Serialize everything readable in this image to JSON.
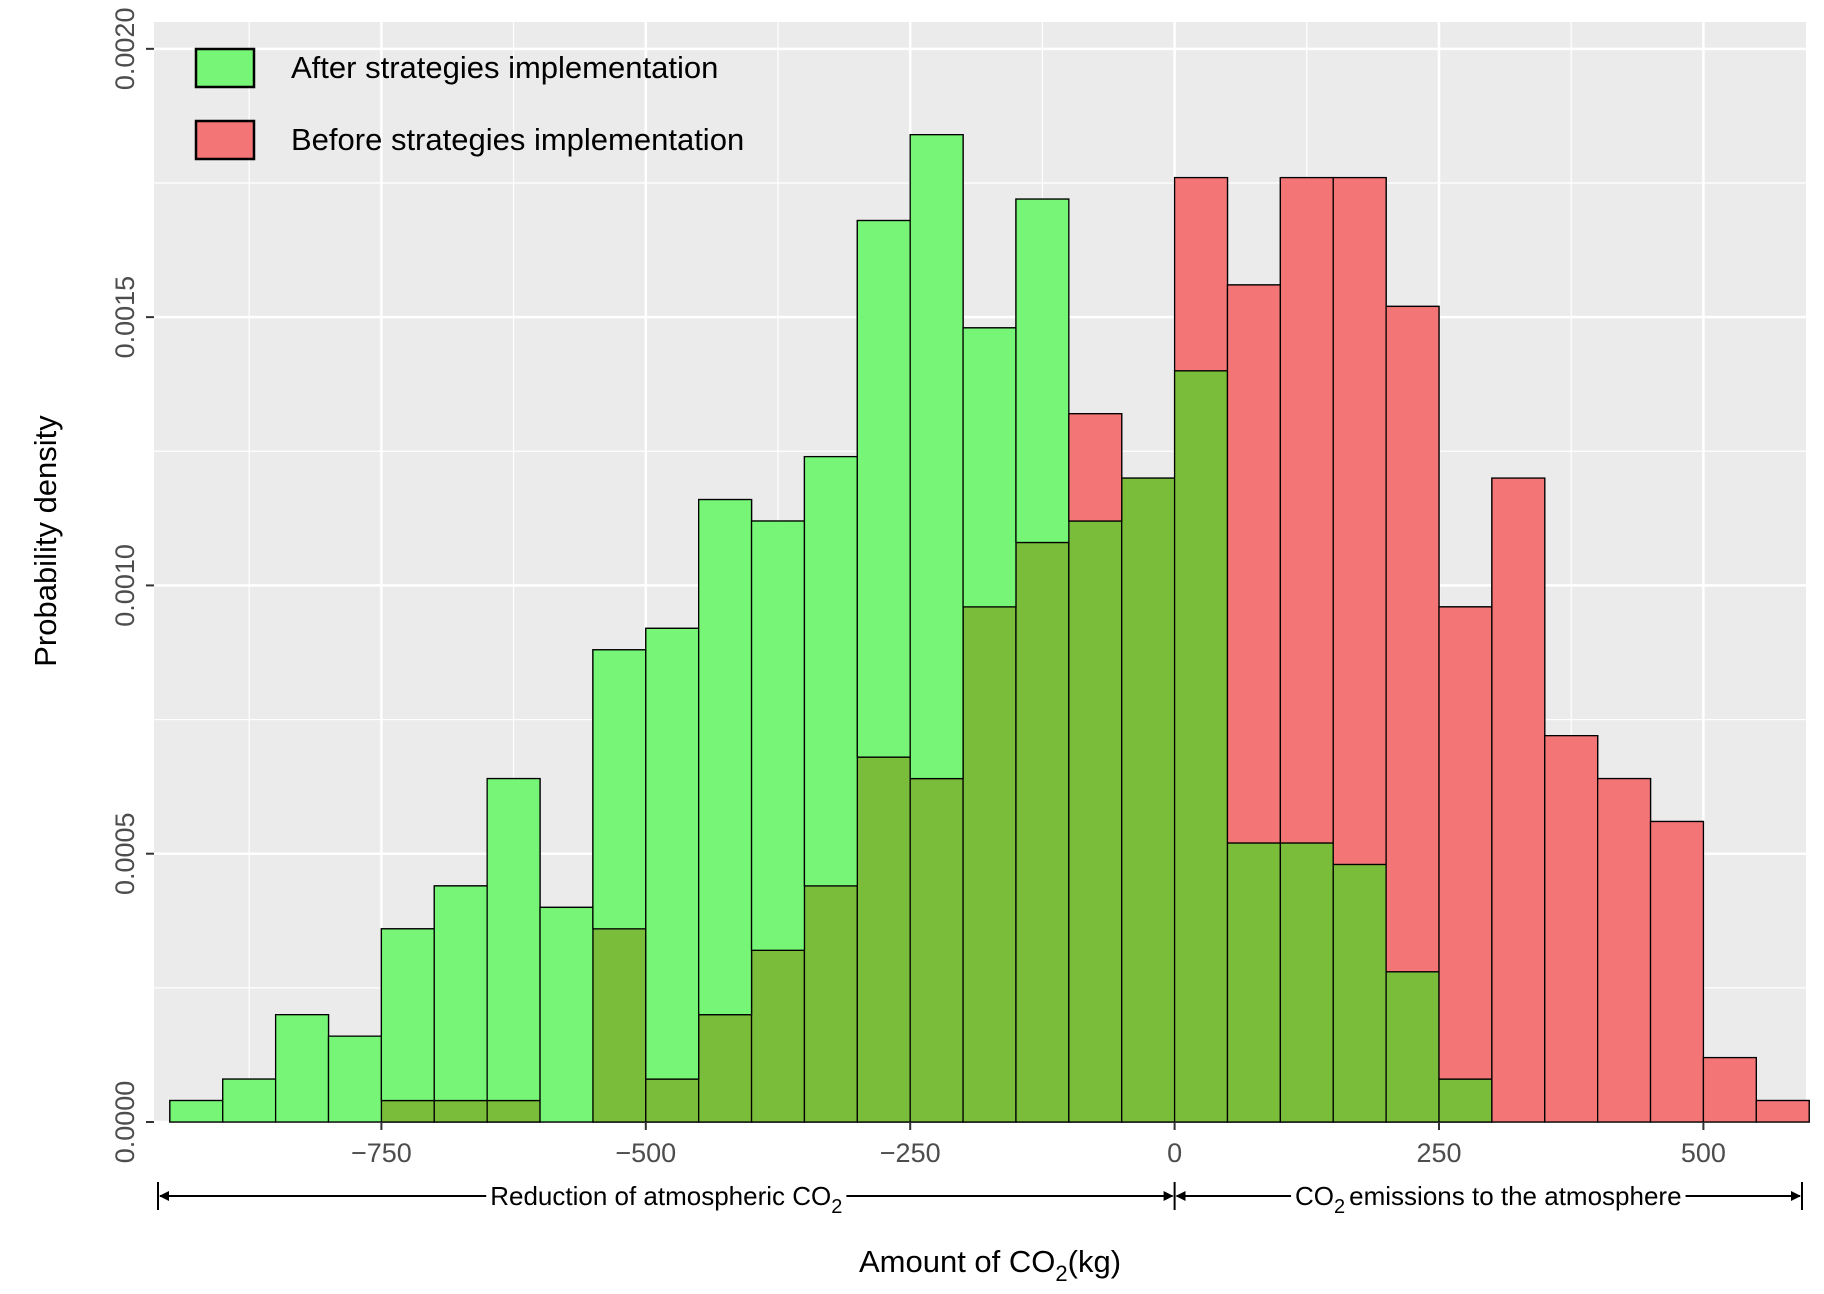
{
  "chart_data": {
    "type": "bar",
    "subtype": "overlaid histogram",
    "title": "",
    "xlabel": "Amount of CO",
    "xlabel_sub": "2",
    "xlabel_unit": "(kg)",
    "ylabel": "Probability density",
    "xlim": [
      -965,
      597
    ],
    "ylim": [
      0,
      0.00205
    ],
    "bin_width": 50,
    "x_ticks": [
      {
        "value": -750,
        "label": "−750"
      },
      {
        "value": -500,
        "label": "−500"
      },
      {
        "value": -250,
        "label": "−250"
      },
      {
        "value": 0,
        "label": "0"
      },
      {
        "value": 250,
        "label": "250"
      },
      {
        "value": 500,
        "label": "500"
      }
    ],
    "y_ticks": [
      {
        "value": 0,
        "label": "0.0000"
      },
      {
        "value": 0.0005,
        "label": "0.0005"
      },
      {
        "value": 0.001,
        "label": "0.0010"
      },
      {
        "value": 0.0015,
        "label": "0.0015"
      },
      {
        "value": 0.002,
        "label": "0.0020"
      }
    ],
    "grid": true,
    "legend_position": "top-left",
    "series": [
      {
        "name": "After strategies implementation",
        "color": "#76f576",
        "bin_starts": [
          -950,
          -900,
          -850,
          -800,
          -750,
          -700,
          -650,
          -600,
          -550,
          -500,
          -450,
          -400,
          -350,
          -300,
          -250,
          -200,
          -150,
          -100,
          -50,
          0,
          50,
          100,
          150,
          200,
          250
        ],
        "values": [
          4e-05,
          8e-05,
          0.0002,
          0.00016,
          0.00036,
          0.00044,
          0.00064,
          0.0004,
          0.00088,
          0.00092,
          0.00116,
          0.00112,
          0.00124,
          0.00168,
          0.00184,
          0.00148,
          0.00172,
          0.00112,
          0.0012,
          0.0014,
          0.00052,
          0.00052,
          0.00048,
          0.00028,
          8e-05
        ]
      },
      {
        "name": "Before strategies implementation",
        "color": "#f47575",
        "bin_starts": [
          -750,
          -700,
          -650,
          -550,
          -500,
          -450,
          -400,
          -350,
          -300,
          -250,
          -200,
          -150,
          -100,
          -50,
          0,
          50,
          100,
          150,
          200,
          250,
          300,
          350,
          400,
          450,
          500,
          550
        ],
        "values": [
          4e-05,
          4e-05,
          4e-05,
          0.00036,
          8e-05,
          0.0002,
          0.00032,
          0.00044,
          0.00068,
          0.00064,
          0.00096,
          0.00108,
          0.00132,
          0.0012,
          0.00176,
          0.00156,
          0.00176,
          0.00176,
          0.00152,
          0.00096,
          0.0012,
          0.00072,
          0.00064,
          0.00056,
          0.00012,
          4e-05
        ]
      }
    ],
    "overlap_color": "#7abd3a",
    "annotations": {
      "left_range": [
        -965,
        0
      ],
      "left_label": "Reduction of atmospheric CO",
      "left_label_sub": "2",
      "right_range": [
        0,
        597
      ],
      "right_label_prefix": "CO",
      "right_label_sub": "2",
      "right_label": "emissions to the atmosphere"
    }
  }
}
